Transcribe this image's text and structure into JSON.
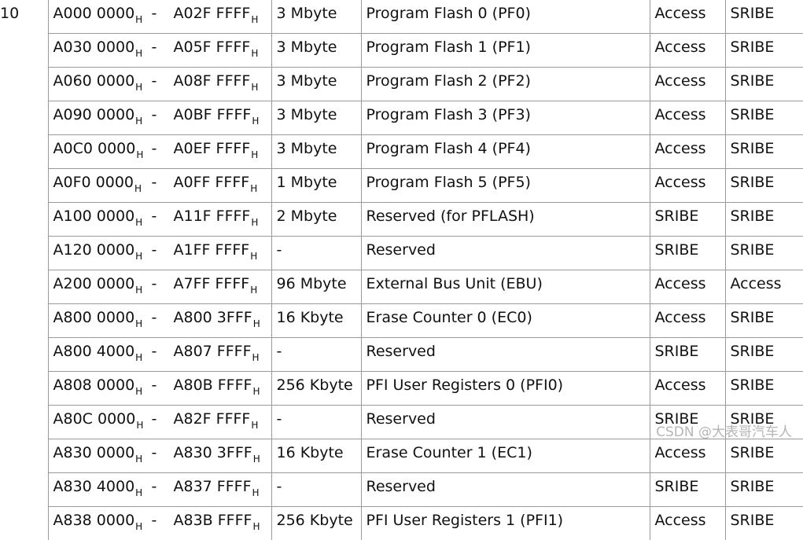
{
  "segment": "10",
  "subscript": "H",
  "dash": "-",
  "rows": [
    {
      "start": "A000 0000",
      "end": "A02F FFFF",
      "size": "3 Mbyte",
      "unit": "Program Flash 0 (PF0)",
      "acc1": "Access",
      "acc2": "SRIBE"
    },
    {
      "start": "A030 0000",
      "end": "A05F FFFF",
      "size": "3 Mbyte",
      "unit": "Program Flash 1 (PF1)",
      "acc1": "Access",
      "acc2": "SRIBE"
    },
    {
      "start": "A060 0000",
      "end": "A08F FFFF",
      "size": "3 Mbyte",
      "unit": "Program Flash 2 (PF2)",
      "acc1": "Access",
      "acc2": "SRIBE"
    },
    {
      "start": "A090 0000",
      "end": "A0BF FFFF",
      "size": "3 Mbyte",
      "unit": "Program Flash 3 (PF3)",
      "acc1": "Access",
      "acc2": "SRIBE"
    },
    {
      "start": "A0C0 0000",
      "end": "A0EF FFFF",
      "size": "3 Mbyte",
      "unit": "Program Flash 4 (PF4)",
      "acc1": "Access",
      "acc2": "SRIBE"
    },
    {
      "start": "A0F0 0000",
      "end": "A0FF FFFF",
      "size": "1 Mbyte",
      "unit": "Program Flash 5 (PF5)",
      "acc1": "Access",
      "acc2": "SRIBE"
    },
    {
      "start": "A100 0000",
      "end": "A11F FFFF",
      "size": "2 Mbyte",
      "unit": "Reserved (for PFLASH)",
      "acc1": "SRIBE",
      "acc2": "SRIBE"
    },
    {
      "start": "A120 0000",
      "end": "A1FF FFFF",
      "size": "-",
      "unit": "Reserved",
      "acc1": "SRIBE",
      "acc2": "SRIBE"
    },
    {
      "start": "A200 0000",
      "end": "A7FF FFFF",
      "size": "96 Mbyte",
      "unit": "External Bus Unit (EBU)",
      "acc1": "Access",
      "acc2": "Access"
    },
    {
      "start": "A800 0000",
      "end": "A800 3FFF",
      "size": "16 Kbyte",
      "unit": "Erase Counter 0 (EC0)",
      "acc1": "Access",
      "acc2": "SRIBE"
    },
    {
      "start": "A800 4000",
      "end": "A807 FFFF",
      "size": "-",
      "unit": "Reserved",
      "acc1": "SRIBE",
      "acc2": "SRIBE"
    },
    {
      "start": "A808 0000",
      "end": "A80B FFFF",
      "size": "256 Kbyte",
      "unit": "PFI User Registers 0 (PFI0)",
      "acc1": "Access",
      "acc2": "SRIBE"
    },
    {
      "start": "A80C 0000",
      "end": "A82F FFFF",
      "size": "-",
      "unit": "Reserved",
      "acc1": "SRIBE",
      "acc2": "SRIBE"
    },
    {
      "start": "A830 0000",
      "end": "A830 3FFF",
      "size": "16 Kbyte",
      "unit": "Erase Counter 1 (EC1)",
      "acc1": "Access",
      "acc2": "SRIBE"
    },
    {
      "start": "A830 4000",
      "end": "A837 FFFF",
      "size": "-",
      "unit": "Reserved",
      "acc1": "SRIBE",
      "acc2": "SRIBE"
    },
    {
      "start": "A838 0000",
      "end": "A83B FFFF",
      "size": "256 Kbyte",
      "unit": "PFI User Registers 1 (PFI1)",
      "acc1": "Access",
      "acc2": "SRIBE"
    }
  ],
  "watermark": "CSDN @大表哥汽车人"
}
